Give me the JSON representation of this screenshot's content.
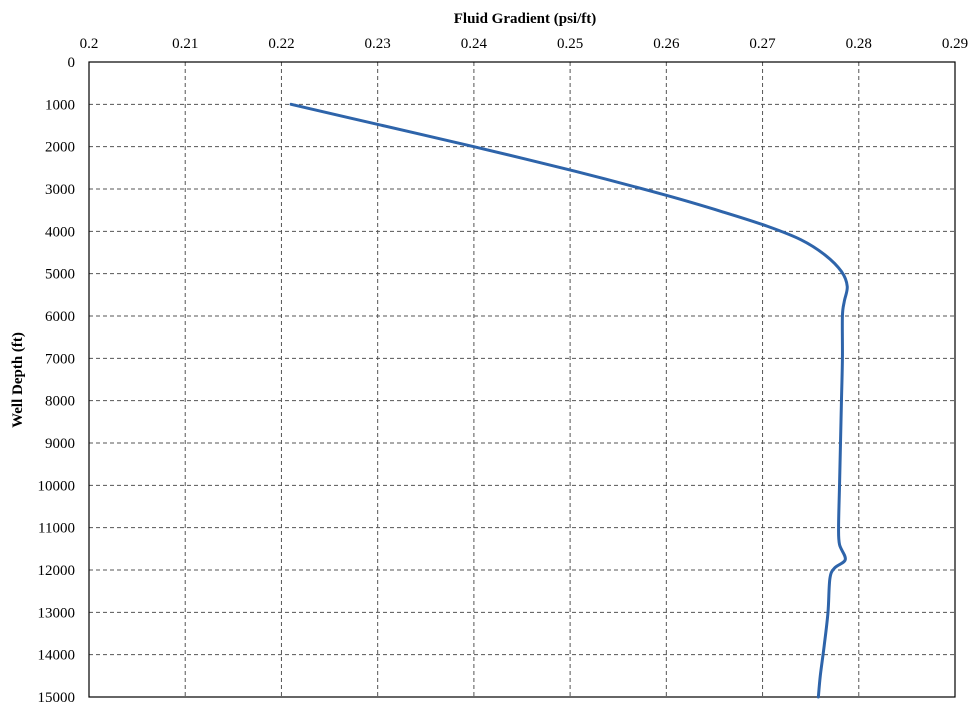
{
  "chart_data": {
    "type": "line",
    "title": "",
    "xlabel": "Fluid Gradient  (psi/ft)",
    "ylabel": "Well Depth (ft)",
    "x_axis_position": "top",
    "y_axis_inverted": true,
    "xlim": [
      0.2,
      0.29
    ],
    "ylim": [
      0,
      15000
    ],
    "x_ticks": [
      "0.2",
      "0.21",
      "0.22",
      "0.23",
      "0.24",
      "0.25",
      "0.26",
      "0.27",
      "0.28",
      "0.29"
    ],
    "y_ticks": [
      "0",
      "1000",
      "2000",
      "3000",
      "4000",
      "5000",
      "6000",
      "7000",
      "8000",
      "9000",
      "10000",
      "11000",
      "12000",
      "13000",
      "14000",
      "15000"
    ],
    "grid": true,
    "legend": "none",
    "series": [
      {
        "color": "#2e64aa",
        "points": [
          [
            0.221,
            1000
          ],
          [
            0.2305,
            1500
          ],
          [
            0.24,
            2000
          ],
          [
            0.2505,
            2580
          ],
          [
            0.26,
            3150
          ],
          [
            0.266,
            3550
          ],
          [
            0.2705,
            3880
          ],
          [
            0.274,
            4200
          ],
          [
            0.2765,
            4560
          ],
          [
            0.2782,
            4950
          ],
          [
            0.2788,
            5300
          ],
          [
            0.2785,
            5650
          ],
          [
            0.2783,
            6000
          ],
          [
            0.2783,
            7000
          ],
          [
            0.2782,
            8000
          ],
          [
            0.2781,
            9000
          ],
          [
            0.278,
            10000
          ],
          [
            0.2779,
            11000
          ],
          [
            0.278,
            11400
          ],
          [
            0.2786,
            11750
          ],
          [
            0.2775,
            11950
          ],
          [
            0.277,
            12200
          ],
          [
            0.2768,
            13000
          ],
          [
            0.2764,
            13800
          ],
          [
            0.276,
            14500
          ],
          [
            0.2758,
            15000
          ]
        ]
      }
    ]
  }
}
